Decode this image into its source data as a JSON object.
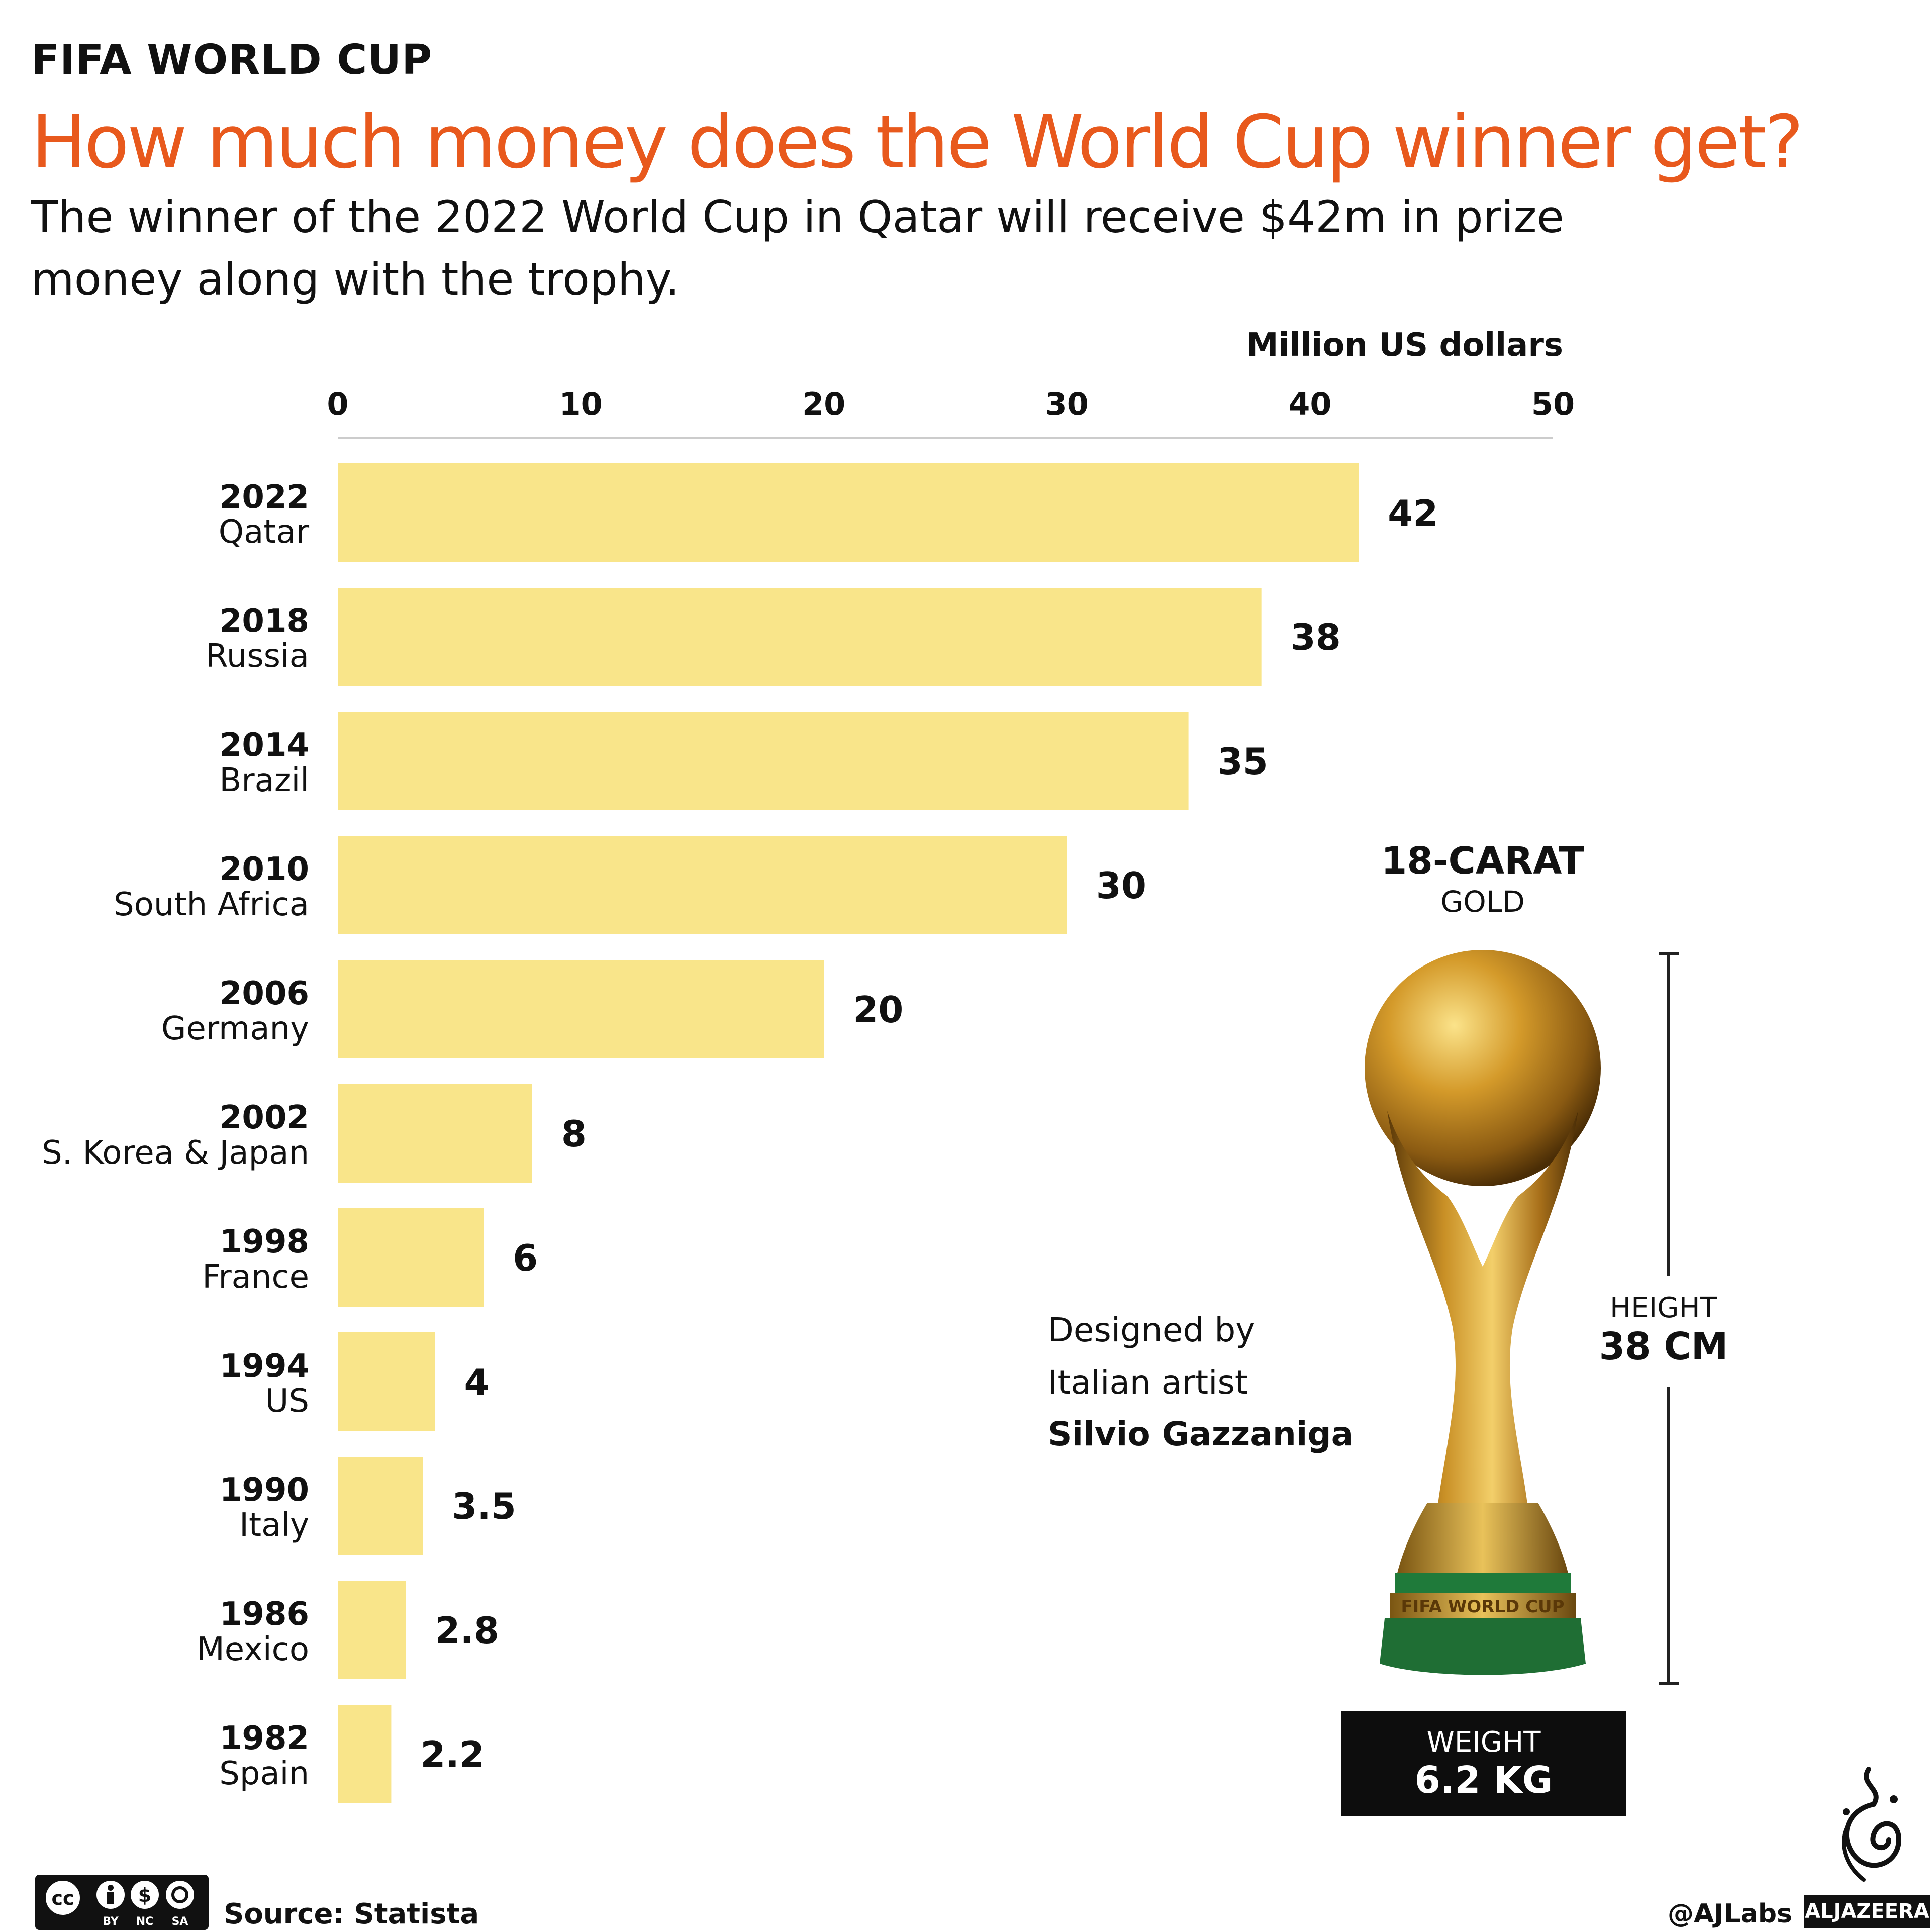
{
  "kicker": "FIFA WORLD CUP",
  "headline": "How much money does the World Cup winner get?",
  "subtitle": "The winner of the 2022 World Cup in Qatar will receive $42m in prize money along with the trophy.",
  "colors": {
    "headline": "#e8591d",
    "bar": "#f9e58a",
    "text": "#111111",
    "box": "#0d0d0d"
  },
  "chart_data": {
    "type": "bar",
    "orientation": "horizontal",
    "unit_label": "Million US dollars",
    "xlim": [
      0,
      50
    ],
    "ticks": [
      0,
      10,
      20,
      30,
      40,
      50
    ],
    "tick_labels": [
      "0",
      "10",
      "20",
      "30",
      "40",
      "50"
    ],
    "axis_position": "top",
    "categories": [
      {
        "year": "2022",
        "host": "Qatar"
      },
      {
        "year": "2018",
        "host": "Russia"
      },
      {
        "year": "2014",
        "host": "Brazil"
      },
      {
        "year": "2010",
        "host": "South Africa"
      },
      {
        "year": "2006",
        "host": "Germany"
      },
      {
        "year": "2002",
        "host": "S. Korea & Japan"
      },
      {
        "year": "1998",
        "host": "France"
      },
      {
        "year": "1994",
        "host": "US"
      },
      {
        "year": "1990",
        "host": "Italy"
      },
      {
        "year": "1986",
        "host": "Mexico"
      },
      {
        "year": "1982",
        "host": "Spain"
      }
    ],
    "values": [
      42,
      38,
      35,
      30,
      20,
      8,
      6,
      4,
      3.5,
      2.8,
      2.2
    ],
    "value_labels": [
      "42",
      "38",
      "35",
      "30",
      "20",
      "8",
      "6",
      "4",
      "3.5",
      "2.8",
      "2.2"
    ]
  },
  "trophy": {
    "material_title": "18-CARAT",
    "material_sub": "GOLD",
    "height_label": "HEIGHT",
    "height_value": "38 CM",
    "weight_label": "WEIGHT",
    "weight_value": "6.2 KG",
    "designer_line1": "Designed by",
    "designer_line2": "Italian artist",
    "designer_name": "Silvio Gazzaniga",
    "base_text": "FIFA WORLD CUP",
    "icon": "world-cup-trophy"
  },
  "footer": {
    "license": [
      "BY",
      "NC",
      "SA"
    ],
    "source": "Source: Statista",
    "handle": "@AJLabs",
    "brand": "ALJAZEERA"
  }
}
